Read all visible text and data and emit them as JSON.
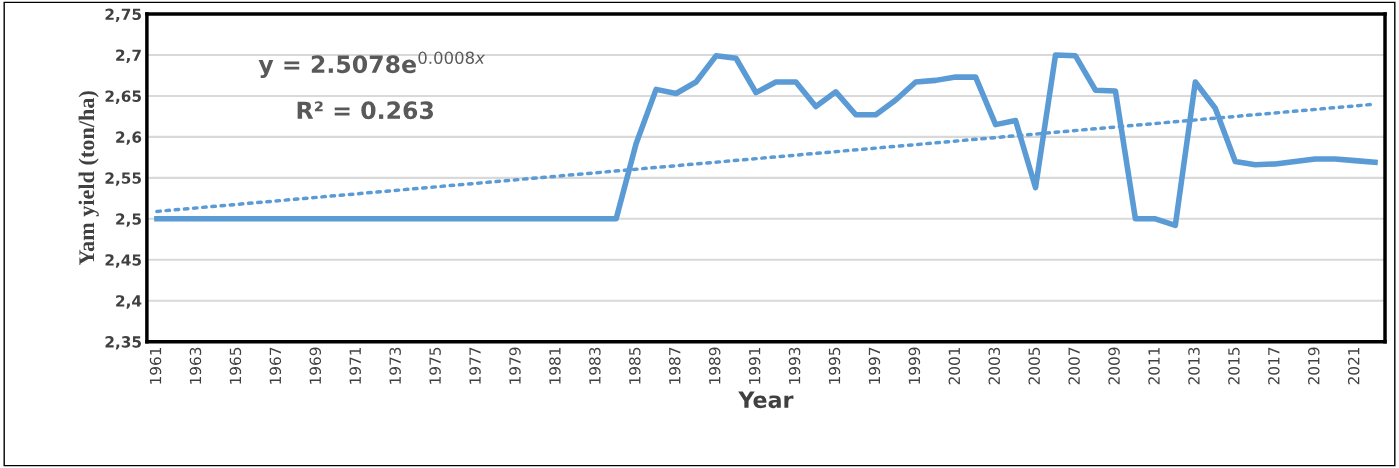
{
  "chart_data": {
    "type": "line",
    "xlabel": "Year",
    "ylabel": "Yam yield (ton/ha)",
    "x": [
      1961,
      1962,
      1963,
      1964,
      1965,
      1966,
      1967,
      1968,
      1969,
      1970,
      1971,
      1972,
      1973,
      1974,
      1975,
      1976,
      1977,
      1978,
      1979,
      1980,
      1981,
      1982,
      1983,
      1984,
      1985,
      1986,
      1987,
      1988,
      1989,
      1990,
      1991,
      1992,
      1993,
      1994,
      1995,
      1996,
      1997,
      1998,
      1999,
      2000,
      2001,
      2002,
      2003,
      2004,
      2005,
      2006,
      2007,
      2008,
      2009,
      2010,
      2011,
      2012,
      2013,
      2014,
      2015,
      2016,
      2017,
      2018,
      2019,
      2020,
      2021,
      2022
    ],
    "series": [
      {
        "color": "#5b9bd5",
        "line_style": "solid",
        "values": [
          2.5,
          2.5,
          2.5,
          2.5,
          2.5,
          2.5,
          2.5,
          2.5,
          2.5,
          2.5,
          2.5,
          2.5,
          2.5,
          2.5,
          2.5,
          2.5,
          2.5,
          2.5,
          2.5,
          2.5,
          2.5,
          2.5,
          2.5,
          2.5,
          2.592,
          2.658,
          2.653,
          2.667,
          2.699,
          2.696,
          2.654,
          2.667,
          2.667,
          2.637,
          2.655,
          2.627,
          2.627,
          2.645,
          2.667,
          2.669,
          2.673,
          2.673,
          2.615,
          2.62,
          2.538,
          2.7,
          2.699,
          2.657,
          2.656,
          2.5,
          2.5,
          2.492,
          2.667,
          2.635,
          2.57,
          2.566,
          2.567,
          2.57,
          2.573,
          2.573,
          2.571,
          2.569
        ]
      },
      {
        "type": "line",
        "color": "#5b9bd5",
        "line_style": "dotted",
        "x": [
          1961,
          2022
        ],
        "values": [
          2.509,
          2.64
        ]
      }
    ],
    "xlim": [
      1960.5,
      2022.5
    ],
    "xticks": [
      1961,
      1963,
      1965,
      1967,
      1969,
      1971,
      1973,
      1975,
      1977,
      1979,
      1981,
      1983,
      1985,
      1987,
      1989,
      1991,
      1993,
      1995,
      1997,
      1999,
      2001,
      2003,
      2005,
      2007,
      2009,
      2011,
      2013,
      2015,
      2017,
      2019,
      2021
    ],
    "ylim": [
      2.35,
      2.75
    ],
    "yticks": [
      {
        "value": 2.35,
        "label": "2,35"
      },
      {
        "value": 2.4,
        "label": "2,4"
      },
      {
        "value": 2.45,
        "label": "2,45"
      },
      {
        "value": 2.5,
        "label": "2,5"
      },
      {
        "value": 2.55,
        "label": "2,55"
      },
      {
        "value": 2.6,
        "label": "2,6"
      },
      {
        "value": 2.65,
        "label": "2,65"
      },
      {
        "value": 2.7,
        "label": "2,7"
      },
      {
        "value": 2.75,
        "label": "2,75"
      }
    ],
    "grid": "y",
    "legend": false,
    "marker": "none",
    "annotations": [
      "y = 2.5078e$^{0.0008x}$",
      "R² = 0.263"
    ]
  }
}
